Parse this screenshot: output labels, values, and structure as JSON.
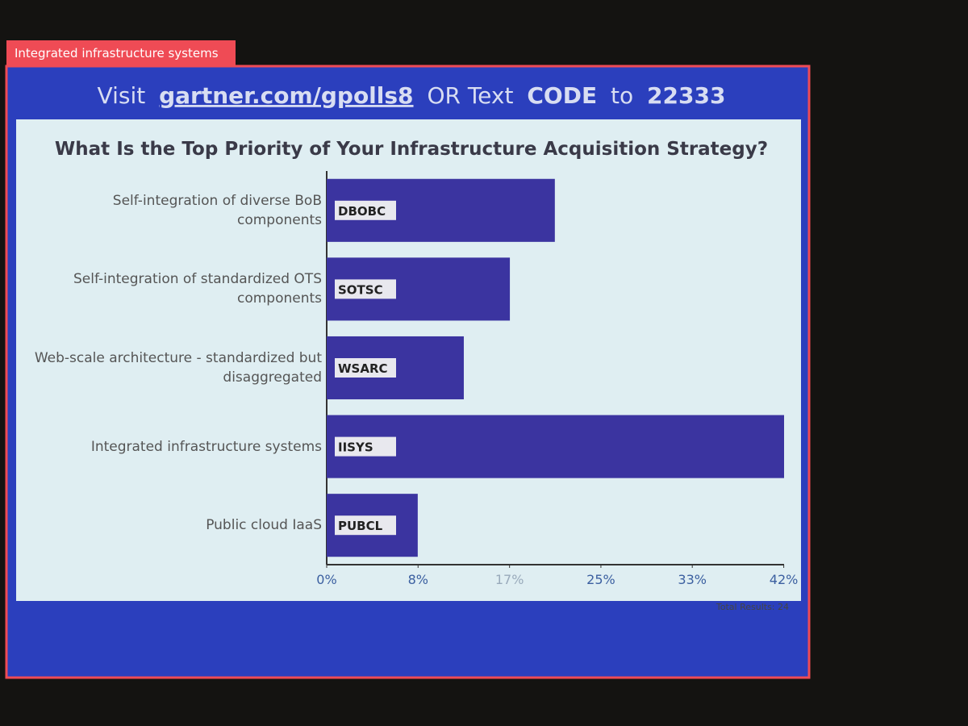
{
  "annotation": {
    "label": "Integrated infrastructure systems"
  },
  "chart_data": {
    "type": "bar",
    "orientation": "horizontal",
    "banner": [
      "Visit",
      "gartner.com/gpolls8",
      "OR Text",
      "CODE",
      "to",
      "22333"
    ],
    "title": "What Is the Top Priority of Your Infrastructure Acquisition Strategy?",
    "categories": [
      "Self-integration of diverse BoB components",
      "Self-integration of standardized OTS components",
      "Web-scale architecture - standardized but disaggregated",
      "Integrated infrastructure systems",
      "Public cloud IaaS"
    ],
    "codes": [
      "DBOBC",
      "SOTSC",
      "WSARC",
      "IISYS",
      "PUBCL"
    ],
    "values": [
      20.8,
      16.7,
      12.5,
      41.7,
      8.3
    ],
    "color": "#3b34a0",
    "xlim": [
      0,
      41.7
    ],
    "xticks": [
      {
        "value": 0,
        "label": "0%"
      },
      {
        "value": 8.33,
        "label": "8%"
      },
      {
        "value": 16.67,
        "label": "17%"
      },
      {
        "value": 25,
        "label": "25%"
      },
      {
        "value": 33.33,
        "label": "33%"
      },
      {
        "value": 41.67,
        "label": "42%"
      }
    ],
    "footnote": "Total Results: 24"
  }
}
